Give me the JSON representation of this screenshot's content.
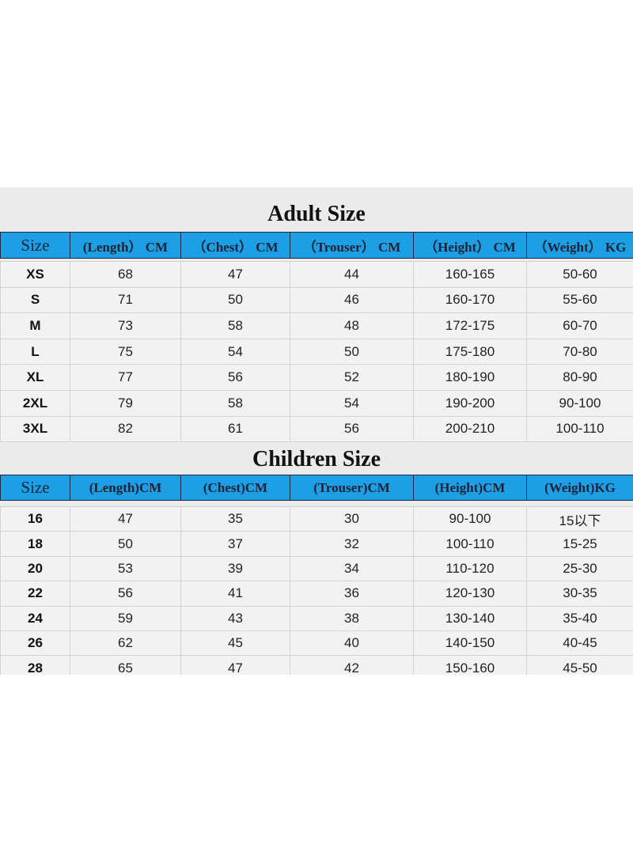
{
  "adult": {
    "title": "Adult Size",
    "header": [
      "Size",
      "(Length） CM",
      "（Chest） CM",
      "（Trouser） CM",
      "（Height） CM",
      "（Weight） KG"
    ],
    "rows": [
      [
        "XS",
        "68",
        "47",
        "44",
        "160-165",
        "50-60"
      ],
      [
        "S",
        "71",
        "50",
        "46",
        "160-170",
        "55-60"
      ],
      [
        "M",
        "73",
        "58",
        "48",
        "172-175",
        "60-70"
      ],
      [
        "L",
        "75",
        "54",
        "50",
        "175-180",
        "70-80"
      ],
      [
        "XL",
        "77",
        "56",
        "52",
        "180-190",
        "80-90"
      ],
      [
        "2XL",
        "79",
        "58",
        "54",
        "190-200",
        "90-100"
      ],
      [
        "3XL",
        "82",
        "61",
        "56",
        "200-210",
        "100-110"
      ]
    ]
  },
  "children": {
    "title": "Children Size",
    "header": [
      "Size",
      "(Length)CM",
      "(Chest)CM",
      "(Trouser)CM",
      "(Height)CM",
      "(Weight)KG"
    ],
    "rows": [
      [
        "16",
        "47",
        "35",
        "30",
        "90-100",
        "15以下"
      ],
      [
        "18",
        "50",
        "37",
        "32",
        "100-110",
        "15-25"
      ],
      [
        "20",
        "53",
        "39",
        "34",
        "110-120",
        "25-30"
      ],
      [
        "22",
        "56",
        "41",
        "36",
        "120-130",
        "30-35"
      ],
      [
        "24",
        "59",
        "43",
        "38",
        "130-140",
        "35-40"
      ],
      [
        "26",
        "62",
        "45",
        "40",
        "140-150",
        "40-45"
      ],
      [
        "28",
        "65",
        "47",
        "42",
        "150-160",
        "45-50"
      ]
    ]
  }
}
